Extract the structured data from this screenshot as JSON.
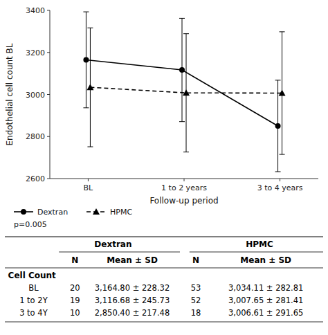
{
  "chart_data": {
    "type": "line",
    "categories": [
      "BL",
      "1 to 2 years",
      "3 to 4 years"
    ],
    "series": [
      {
        "name": "Dextran",
        "color": "#000000",
        "marker": "circle",
        "line_style": "solid",
        "values": [
          3164.8,
          3116.68,
          2850.4
        ],
        "errors": [
          228.32,
          245.73,
          217.48
        ]
      },
      {
        "name": "HPMC",
        "color": "#000000",
        "marker": "triangle",
        "line_style": "dashed",
        "values": [
          3034.11,
          3007.65,
          3006.61
        ],
        "errors": [
          282.81,
          281.41,
          291.65
        ]
      }
    ],
    "xlabel": "Follow-up period",
    "ylabel": "Endothelial cell count BL",
    "ylim": [
      2600,
      3400
    ],
    "yticks": [
      2600,
      2800,
      3000,
      3200,
      3400
    ],
    "grid": false,
    "legend": "bottom",
    "annotations": [
      "p=0.005"
    ],
    "table": {
      "group_headers": [
        "Dextran",
        "HPMC"
      ],
      "subheaders": [
        "N",
        "Mean ± SD",
        "N",
        "Mean ± SD"
      ],
      "row_label": "Cell Count",
      "rows": [
        [
          "BL",
          "20",
          "3,164.80 ± 228.32",
          "53",
          "3,034.11 ± 282.81"
        ],
        [
          "1 to 2Y",
          "19",
          "3,116.68 ± 245.73",
          "52",
          "3,007.65 ± 281.41"
        ],
        [
          "3 to 4Y",
          "10",
          "2,850.40 ± 217.48",
          "18",
          "3,006.61 ± 291.65"
        ]
      ]
    }
  }
}
